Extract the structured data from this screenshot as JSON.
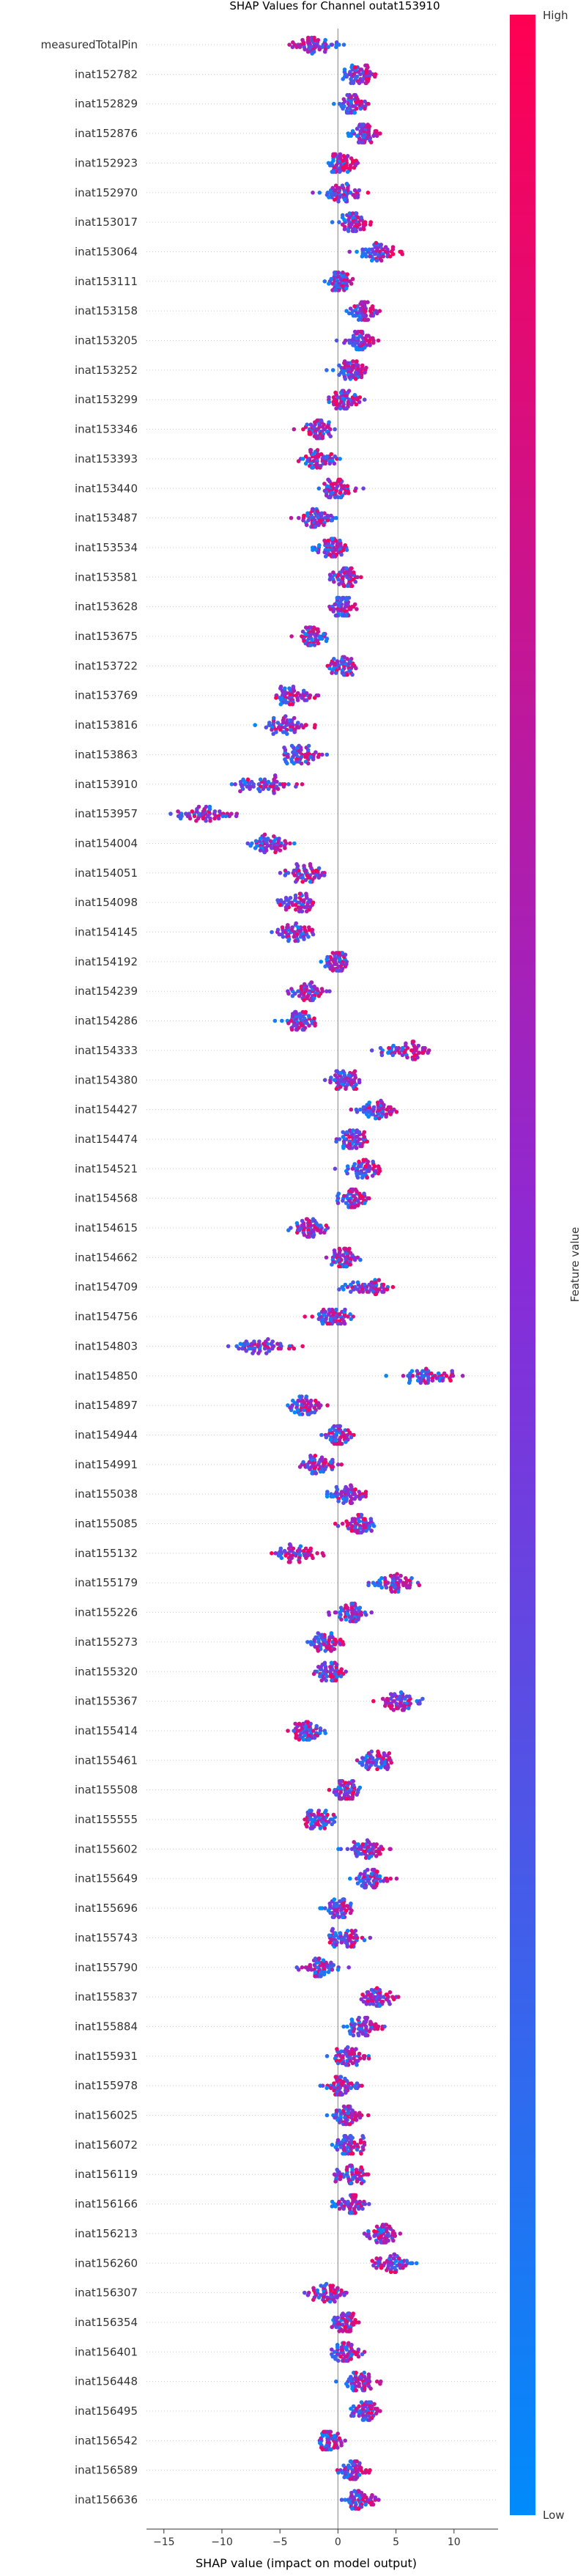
{
  "chart_data": {
    "type": "scatter",
    "subtype": "shap-beeswarm",
    "title": "SHAP Values for Channel outat153910",
    "xlabel": "SHAP value (impact on model output)",
    "xlim": [
      -16.5,
      13.8
    ],
    "xticks": [
      -15,
      -10,
      -5,
      0,
      5,
      10
    ],
    "colorbar": {
      "label": "Feature value",
      "high_label": "High",
      "low_label": "Low",
      "low_color": "#008bfb",
      "high_color": "#ff0052"
    },
    "features": [
      {
        "name": "measuredTotalPin",
        "center": -2.2,
        "spread": 2.2,
        "trend": -1.0
      },
      {
        "name": "inat152782",
        "center": 1.8,
        "spread": 1.3,
        "trend": 0.9
      },
      {
        "name": "inat152829",
        "center": 1.3,
        "spread": 1.2,
        "trend": 0.9
      },
      {
        "name": "inat152876",
        "center": 2.3,
        "spread": 1.4,
        "trend": 0.9
      },
      {
        "name": "inat152923",
        "center": 0.3,
        "spread": 1.4,
        "trend": 0.6
      },
      {
        "name": "inat152970",
        "center": 0.3,
        "spread": 1.5,
        "trend": 0.5
      },
      {
        "name": "inat153017",
        "center": 1.2,
        "spread": 1.3,
        "trend": 0.8
      },
      {
        "name": "inat153064",
        "center": 3.4,
        "spread": 1.7,
        "trend": 0.9
      },
      {
        "name": "inat153111",
        "center": 0.1,
        "spread": 1.2,
        "trend": 0.3
      },
      {
        "name": "inat153158",
        "center": 2.2,
        "spread": 1.3,
        "trend": 0.9
      },
      {
        "name": "inat153205",
        "center": 1.9,
        "spread": 1.4,
        "trend": 0.9
      },
      {
        "name": "inat153252",
        "center": 1.4,
        "spread": 1.4,
        "trend": 0.9
      },
      {
        "name": "inat153299",
        "center": 0.6,
        "spread": 1.6,
        "trend": 0.4
      },
      {
        "name": "inat153346",
        "center": -1.6,
        "spread": 1.6,
        "trend": -0.3
      },
      {
        "name": "inat153393",
        "center": -1.8,
        "spread": 1.5,
        "trend": -0.2
      },
      {
        "name": "inat153440",
        "center": 0.0,
        "spread": 1.7,
        "trend": 0.2
      },
      {
        "name": "inat153487",
        "center": -2.0,
        "spread": 1.6,
        "trend": -0.2
      },
      {
        "name": "inat153534",
        "center": -0.6,
        "spread": 1.5,
        "trend": 0.3
      },
      {
        "name": "inat153581",
        "center": 0.6,
        "spread": 1.4,
        "trend": 0.5
      },
      {
        "name": "inat153628",
        "center": 0.4,
        "spread": 1.1,
        "trend": 0.3
      },
      {
        "name": "inat153675",
        "center": -2.0,
        "spread": 1.4,
        "trend": -0.2
      },
      {
        "name": "inat153722",
        "center": 0.5,
        "spread": 1.4,
        "trend": 0.4
      },
      {
        "name": "inat153769",
        "center": -3.7,
        "spread": 2.2,
        "trend": 0.4
      },
      {
        "name": "inat153816",
        "center": -4.5,
        "spread": 2.5,
        "trend": 0.4
      },
      {
        "name": "inat153863",
        "center": -3.2,
        "spread": 2.0,
        "trend": 0.3
      },
      {
        "name": "inat153910",
        "center": -6.5,
        "spread": 2.8,
        "trend": 0.5
      },
      {
        "name": "inat153957",
        "center": -11.8,
        "spread": 3.2,
        "trend": 0.5
      },
      {
        "name": "inat154004",
        "center": -6.0,
        "spread": 2.2,
        "trend": 0.3
      },
      {
        "name": "inat154051",
        "center": -2.9,
        "spread": 2.0,
        "trend": 0.3
      },
      {
        "name": "inat154098",
        "center": -3.7,
        "spread": 2.0,
        "trend": 0.3
      },
      {
        "name": "inat154145",
        "center": -3.9,
        "spread": 2.1,
        "trend": 0.2
      },
      {
        "name": "inat154192",
        "center": -0.1,
        "spread": 1.5,
        "trend": 0.4
      },
      {
        "name": "inat154239",
        "center": -2.6,
        "spread": 1.8,
        "trend": 0.3
      },
      {
        "name": "inat154286",
        "center": -3.3,
        "spread": 1.7,
        "trend": 0.2
      },
      {
        "name": "inat154333",
        "center": 5.6,
        "spread": 2.6,
        "trend": 0.8
      },
      {
        "name": "inat154380",
        "center": 0.4,
        "spread": 1.7,
        "trend": 0.3
      },
      {
        "name": "inat154427",
        "center": 3.3,
        "spread": 1.7,
        "trend": 0.8
      },
      {
        "name": "inat154474",
        "center": 1.3,
        "spread": 1.6,
        "trend": 0.4
      },
      {
        "name": "inat154521",
        "center": 2.3,
        "spread": 1.5,
        "trend": 0.8
      },
      {
        "name": "inat154568",
        "center": 1.4,
        "spread": 1.5,
        "trend": 0.4
      },
      {
        "name": "inat154615",
        "center": -2.5,
        "spread": 2.0,
        "trend": -0.2
      },
      {
        "name": "inat154662",
        "center": 0.5,
        "spread": 1.3,
        "trend": 0.3
      },
      {
        "name": "inat154709",
        "center": 2.5,
        "spread": 2.3,
        "trend": 0.6
      },
      {
        "name": "inat154756",
        "center": -0.4,
        "spread": 2.0,
        "trend": 0.3
      },
      {
        "name": "inat154803",
        "center": -6.8,
        "spread": 3.0,
        "trend": 0.5
      },
      {
        "name": "inat154850",
        "center": 8.3,
        "spread": 3.4,
        "trend": 0.6
      },
      {
        "name": "inat154897",
        "center": -2.8,
        "spread": 1.9,
        "trend": 0.3
      },
      {
        "name": "inat154944",
        "center": 0.0,
        "spread": 1.3,
        "trend": 0.4
      },
      {
        "name": "inat154991",
        "center": -1.6,
        "spread": 1.7,
        "trend": 0.3
      },
      {
        "name": "inat155038",
        "center": 0.8,
        "spread": 1.8,
        "trend": 0.5
      },
      {
        "name": "inat155085",
        "center": 1.8,
        "spread": 1.8,
        "trend": -0.4
      },
      {
        "name": "inat155132",
        "center": -3.7,
        "spread": 2.3,
        "trend": 0.4
      },
      {
        "name": "inat155179",
        "center": 5.0,
        "spread": 2.0,
        "trend": 0.7
      },
      {
        "name": "inat155226",
        "center": 1.0,
        "spread": 1.8,
        "trend": 0.3
      },
      {
        "name": "inat155273",
        "center": -1.1,
        "spread": 1.7,
        "trend": 0.3
      },
      {
        "name": "inat155320",
        "center": -0.6,
        "spread": 1.8,
        "trend": 0.3
      },
      {
        "name": "inat155367",
        "center": 5.3,
        "spread": 2.0,
        "trend": -0.5
      },
      {
        "name": "inat155414",
        "center": -2.7,
        "spread": 1.8,
        "trend": -0.3
      },
      {
        "name": "inat155461",
        "center": 3.3,
        "spread": 1.8,
        "trend": 0.5
      },
      {
        "name": "inat155508",
        "center": 0.7,
        "spread": 1.4,
        "trend": -0.3
      },
      {
        "name": "inat155555",
        "center": -1.9,
        "spread": 1.9,
        "trend": -0.3
      },
      {
        "name": "inat155602",
        "center": 2.3,
        "spread": 1.8,
        "trend": 0.6
      },
      {
        "name": "inat155649",
        "center": 2.9,
        "spread": 1.7,
        "trend": 0.6
      },
      {
        "name": "inat155696",
        "center": 0.1,
        "spread": 1.3,
        "trend": 0.4
      },
      {
        "name": "inat155743",
        "center": 0.6,
        "spread": 1.6,
        "trend": 0.4
      },
      {
        "name": "inat155790",
        "center": -1.5,
        "spread": 1.7,
        "trend": -0.3
      },
      {
        "name": "inat155837",
        "center": 3.4,
        "spread": 1.6,
        "trend": 0.6
      },
      {
        "name": "inat155884",
        "center": 2.2,
        "spread": 1.6,
        "trend": 0.6
      },
      {
        "name": "inat155931",
        "center": 1.0,
        "spread": 1.7,
        "trend": 0.4
      },
      {
        "name": "inat155978",
        "center": 0.3,
        "spread": 1.9,
        "trend": 0.3
      },
      {
        "name": "inat156025",
        "center": 0.8,
        "spread": 1.7,
        "trend": 0.4
      },
      {
        "name": "inat156072",
        "center": 1.0,
        "spread": 1.6,
        "trend": 0.4
      },
      {
        "name": "inat156119",
        "center": 1.1,
        "spread": 1.6,
        "trend": 0.4
      },
      {
        "name": "inat156166",
        "center": 1.1,
        "spread": 1.6,
        "trend": 0.4
      },
      {
        "name": "inat156213",
        "center": 3.6,
        "spread": 2.0,
        "trend": 0.6
      },
      {
        "name": "inat156260",
        "center": 4.6,
        "spread": 1.9,
        "trend": -0.4
      },
      {
        "name": "inat156307",
        "center": -0.9,
        "spread": 1.9,
        "trend": 0.3
      },
      {
        "name": "inat156354",
        "center": 0.5,
        "spread": 1.5,
        "trend": 0.4
      },
      {
        "name": "inat156401",
        "center": 0.7,
        "spread": 1.5,
        "trend": 0.4
      },
      {
        "name": "inat156448",
        "center": 1.9,
        "spread": 1.7,
        "trend": 0.5
      },
      {
        "name": "inat156495",
        "center": 2.4,
        "spread": 1.6,
        "trend": 0.5
      },
      {
        "name": "inat156542",
        "center": -0.6,
        "spread": 1.5,
        "trend": 0.3
      },
      {
        "name": "inat156589",
        "center": 1.3,
        "spread": 1.4,
        "trend": 0.4
      },
      {
        "name": "inat156636",
        "center": 1.8,
        "spread": 1.6,
        "trend": 0.5
      }
    ]
  }
}
